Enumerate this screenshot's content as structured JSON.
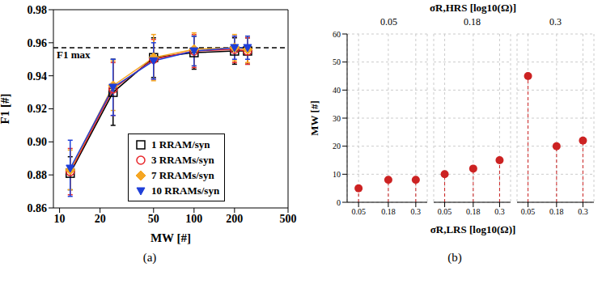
{
  "chart_data": [
    {
      "type": "line",
      "label": "(a)",
      "xlabel": "MW [#]",
      "ylabel": "F1 [#]",
      "log": "x",
      "grid": false,
      "legend": "lower right",
      "x": [
        12,
        25,
        50,
        100,
        200,
        250
      ],
      "xlim": [
        9,
        500
      ],
      "xticks": [
        10,
        20,
        50,
        100,
        200,
        500
      ],
      "ylim": [
        0.86,
        0.98
      ],
      "yticks": [
        0.86,
        0.88,
        {
          "value": 0.9,
          "label": "0.90"
        },
        0.92,
        0.94,
        0.96,
        0.98
      ],
      "reference_line": {
        "y": 0.957,
        "label": "F1 max",
        "line_style": "dashed"
      },
      "series": [
        {
          "name": "1 RRAM/syn",
          "color": "#000000",
          "marker": "square-open",
          "values": [
            0.881,
            0.93,
            0.951,
            0.954,
            0.955,
            0.955
          ],
          "errors": [
            0.01,
            0.02,
            0.012,
            0.01,
            0.008,
            0.008
          ]
        },
        {
          "name": "3 RRAMs/syn",
          "color": "#e8262a",
          "marker": "circle-open",
          "values": [
            0.882,
            0.932,
            0.95,
            0.955,
            0.956,
            0.955
          ],
          "errors": [
            0.014,
            0.016,
            0.012,
            0.01,
            0.008,
            0.008
          ]
        },
        {
          "name": "7 RRAMs/syn",
          "color": "#f5a623",
          "marker": "diamond",
          "values": [
            0.883,
            0.934,
            0.951,
            0.956,
            0.957,
            0.956
          ],
          "errors": [
            0.012,
            0.015,
            0.014,
            0.01,
            0.008,
            0.008
          ]
        },
        {
          "name": "10 RRAMs/syn",
          "color": "#1f3fd8",
          "marker": "triangle-down",
          "values": [
            0.884,
            0.933,
            0.949,
            0.955,
            0.957,
            0.957
          ],
          "errors": [
            0.017,
            0.017,
            0.011,
            0.009,
            0.007,
            0.007
          ]
        }
      ]
    },
    {
      "type": "scatter3d",
      "label": "(b)",
      "grid": true,
      "color": "#cc2222",
      "xlabel": "σR,LRS [log10(Ω)]",
      "ylabel": "σR,HRS [log10(Ω)]",
      "zlabel": "MW [#]",
      "xlim": [
        0,
        0.35
      ],
      "xticks": [
        0.05,
        0.18,
        0.3
      ],
      "yticks": [
        0.05,
        0.18,
        0.3
      ],
      "zlim": [
        0,
        60
      ],
      "zticks": [
        0,
        10,
        20,
        30,
        40,
        50,
        60
      ],
      "x": [
        0.05,
        0.18,
        0.3,
        0.05,
        0.18,
        0.3,
        0.05,
        0.18,
        0.3
      ],
      "y": [
        0.05,
        0.05,
        0.05,
        0.18,
        0.18,
        0.18,
        0.3,
        0.3,
        0.3
      ],
      "values": [
        5,
        8,
        8,
        10,
        12,
        15,
        45,
        20,
        22
      ]
    }
  ]
}
